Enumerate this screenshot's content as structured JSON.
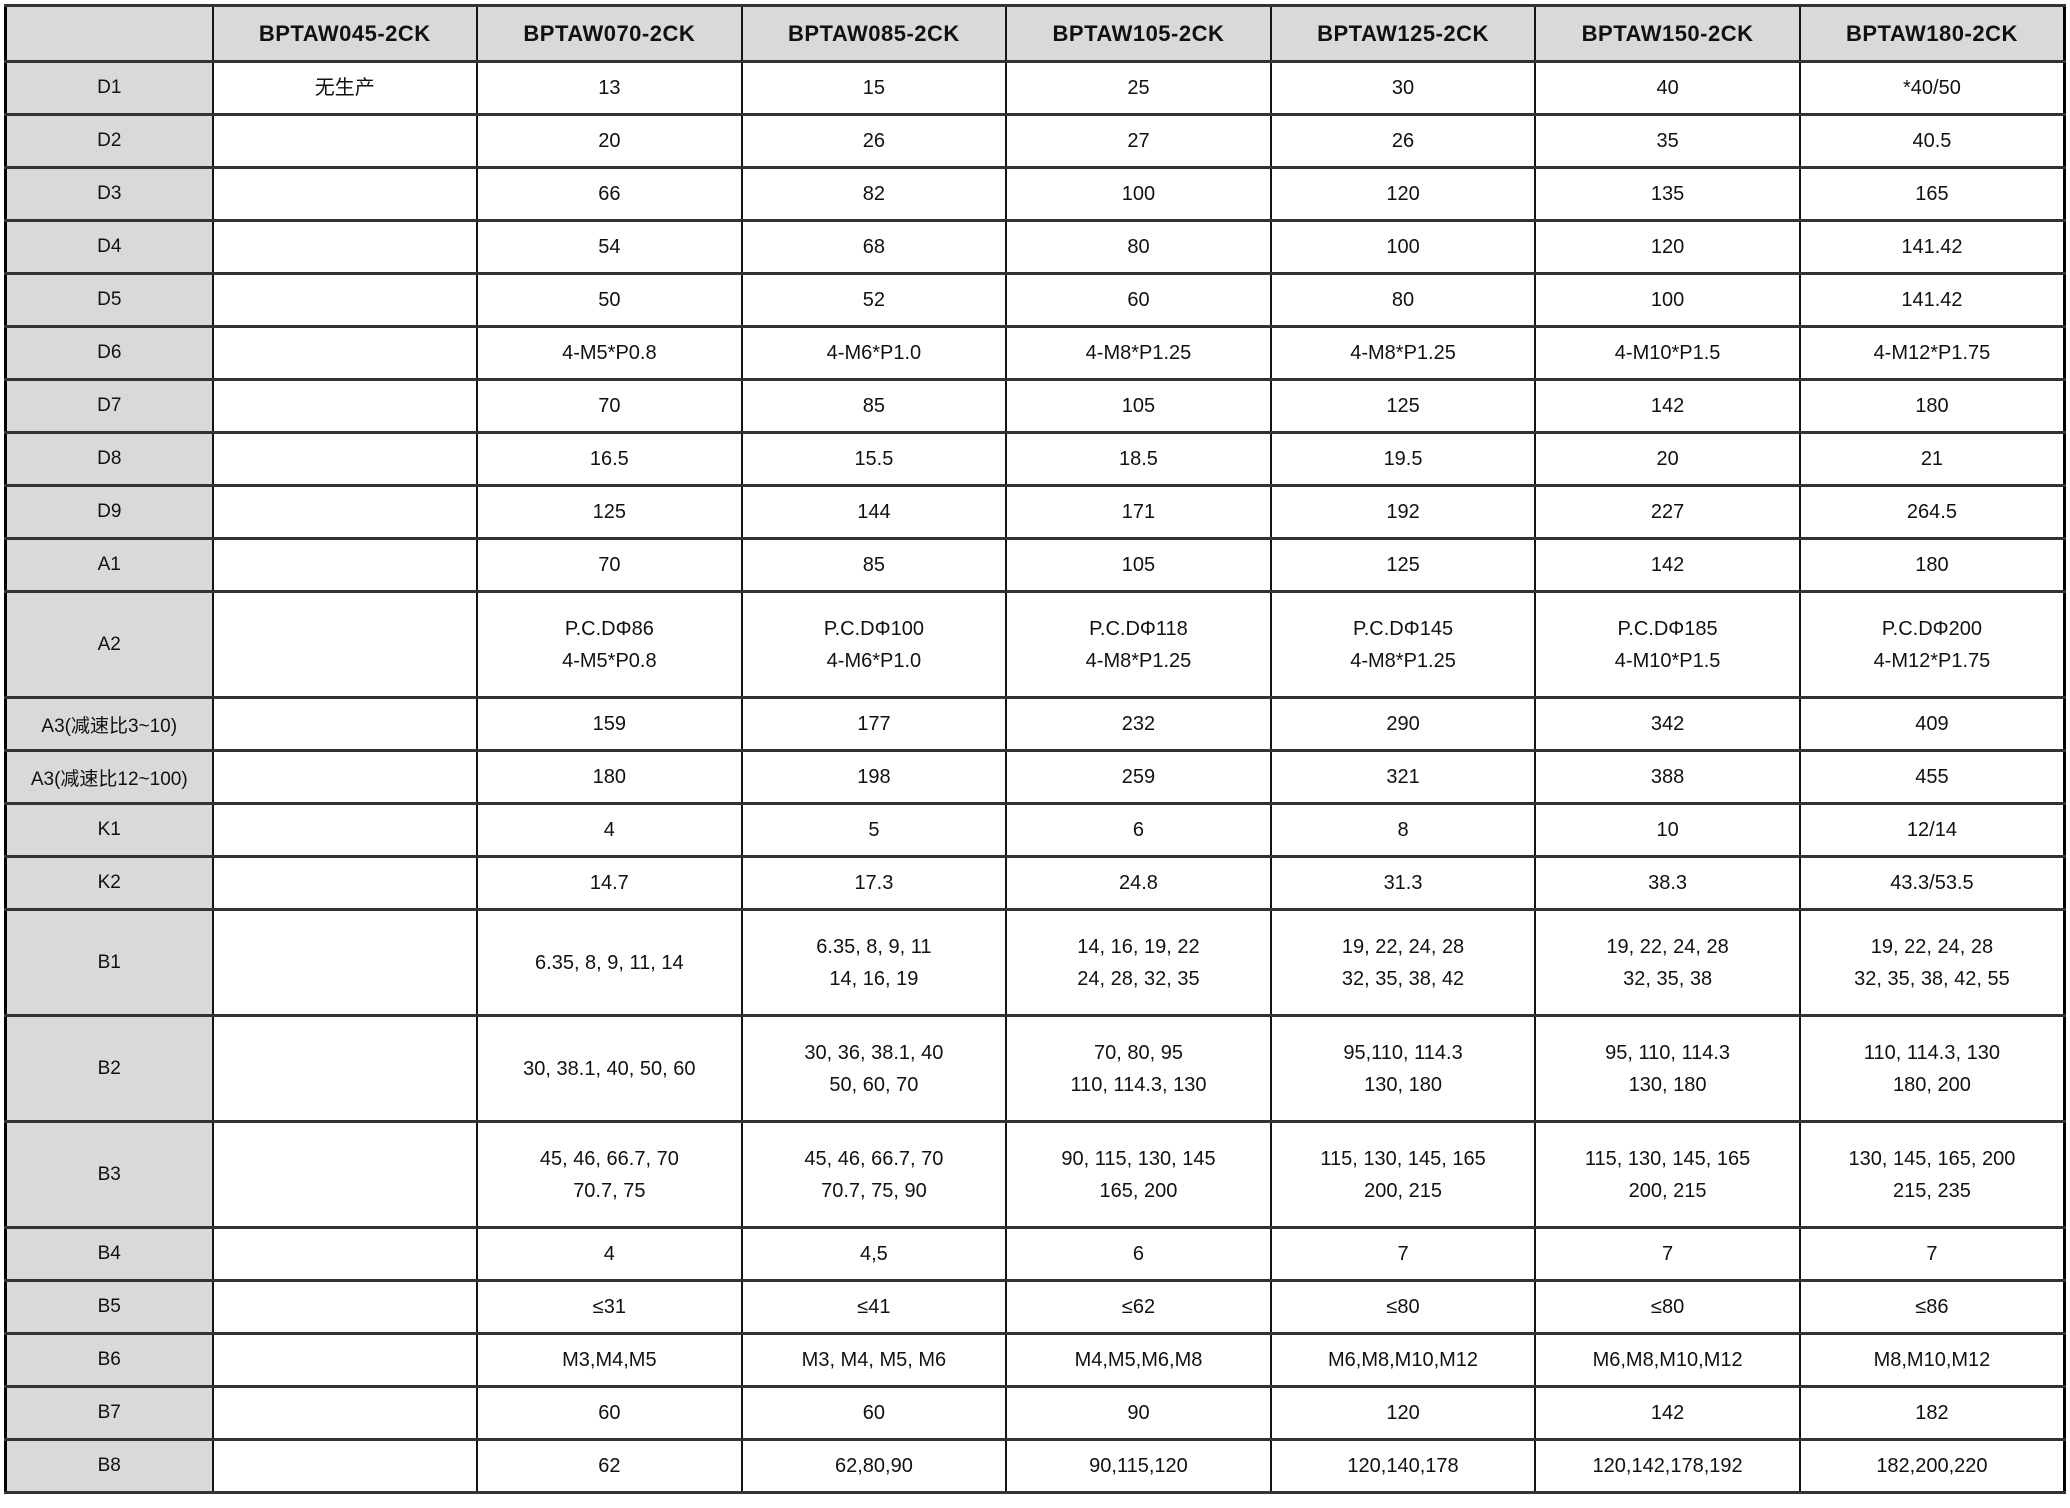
{
  "table": {
    "columns": [
      "",
      "BPTAW045-2CK",
      "BPTAW070-2CK",
      "BPTAW085-2CK",
      "BPTAW105-2CK",
      "BPTAW125-2CK",
      "BPTAW150-2CK",
      "BPTAW180-2CK"
    ],
    "rows": [
      {
        "label": "D1",
        "cells": [
          "无生产",
          "13",
          "15",
          "25",
          "30",
          "40",
          "*40/50"
        ]
      },
      {
        "label": "D2",
        "cells": [
          "",
          "20",
          "26",
          "27",
          "26",
          "35",
          "40.5"
        ]
      },
      {
        "label": "D3",
        "cells": [
          "",
          "66",
          "82",
          "100",
          "120",
          "135",
          "165"
        ]
      },
      {
        "label": "D4",
        "cells": [
          "",
          "54",
          "68",
          "80",
          "100",
          "120",
          "141.42"
        ]
      },
      {
        "label": "D5",
        "cells": [
          "",
          "50",
          "52",
          "60",
          "80",
          "100",
          "141.42"
        ]
      },
      {
        "label": "D6",
        "cells": [
          "",
          "4-M5*P0.8",
          "4-M6*P1.0",
          "4-M8*P1.25",
          "4-M8*P1.25",
          "4-M10*P1.5",
          "4-M12*P1.75"
        ]
      },
      {
        "label": "D7",
        "cells": [
          "",
          "70",
          "85",
          "105",
          "125",
          "142",
          "180"
        ]
      },
      {
        "label": "D8",
        "cells": [
          "",
          "16.5",
          "15.5",
          "18.5",
          "19.5",
          "20",
          "21"
        ]
      },
      {
        "label": "D9",
        "cells": [
          "",
          "125",
          "144",
          "171",
          "192",
          "227",
          "264.5"
        ]
      },
      {
        "label": "A1",
        "cells": [
          "",
          "70",
          "85",
          "105",
          "125",
          "142",
          "180"
        ]
      },
      {
        "label": "A2",
        "cells": [
          "",
          "P.C.DΦ86\n4-M5*P0.8",
          "P.C.DΦ100\n4-M6*P1.0",
          "P.C.DΦ118\n4-M8*P1.25",
          "P.C.DΦ145\n4-M8*P1.25",
          "P.C.DΦ185\n4-M10*P1.5",
          "P.C.DΦ200\n4-M12*P1.75"
        ]
      },
      {
        "label": "A3(减速比3~10)",
        "cells": [
          "",
          "159",
          "177",
          "232",
          "290",
          "342",
          "409"
        ]
      },
      {
        "label": "A3(减速比12~100)",
        "cells": [
          "",
          "180",
          "198",
          "259",
          "321",
          "388",
          "455"
        ]
      },
      {
        "label": "K1",
        "cells": [
          "",
          "4",
          "5",
          "6",
          "8",
          "10",
          "12/14"
        ]
      },
      {
        "label": "K2",
        "cells": [
          "",
          "14.7",
          "17.3",
          "24.8",
          "31.3",
          "38.3",
          "43.3/53.5"
        ]
      },
      {
        "label": "B1",
        "cells": [
          "",
          "6.35, 8, 9, 11, 14",
          "6.35, 8, 9, 11\n14, 16, 19",
          "14, 16, 19, 22\n24, 28, 32, 35",
          "19, 22, 24, 28\n32, 35, 38, 42",
          "19, 22, 24, 28\n32, 35, 38",
          "19, 22, 24, 28\n32, 35, 38, 42, 55"
        ]
      },
      {
        "label": "B2",
        "cells": [
          "",
          "30, 38.1, 40, 50, 60",
          "30, 36, 38.1, 40\n50, 60, 70",
          "70, 80, 95\n110, 114.3, 130",
          "95,110, 114.3\n130, 180",
          "95, 110, 114.3\n130, 180",
          "110, 114.3, 130\n180, 200"
        ]
      },
      {
        "label": "B3",
        "cells": [
          "",
          "45, 46, 66.7, 70\n70.7, 75",
          "45, 46, 66.7, 70\n70.7, 75, 90",
          "90, 115, 130, 145\n165, 200",
          "115, 130, 145, 165\n200, 215",
          "115, 130, 145, 165\n200, 215",
          "130, 145, 165, 200\n215, 235"
        ]
      },
      {
        "label": "B4",
        "cells": [
          "",
          "4",
          "4,5",
          "6",
          "7",
          "7",
          "7"
        ]
      },
      {
        "label": "B5",
        "cells": [
          "",
          "≤31",
          "≤41",
          "≤62",
          "≤80",
          "≤80",
          "≤86"
        ]
      },
      {
        "label": "B6",
        "cells": [
          "",
          "M3,M4,M5",
          "M3, M4, M5, M6",
          "M4,M5,M6,M8",
          "M6,M8,M10,M12",
          "M6,M8,M10,M12",
          "M8,M10,M12"
        ]
      },
      {
        "label": "B7",
        "cells": [
          "",
          "60",
          "60",
          "90",
          "120",
          "142",
          "182"
        ]
      },
      {
        "label": "B8",
        "cells": [
          "",
          "62",
          "62,80,90",
          "90,115,120",
          "120,140,178",
          "120,142,178,192",
          "182,200,220"
        ]
      }
    ],
    "colors": {
      "header_bg": "#d9d9d9",
      "label_bg": "#d9d9d9",
      "cell_bg": "#ffffff",
      "border": "#333333",
      "text": "#111111"
    }
  }
}
